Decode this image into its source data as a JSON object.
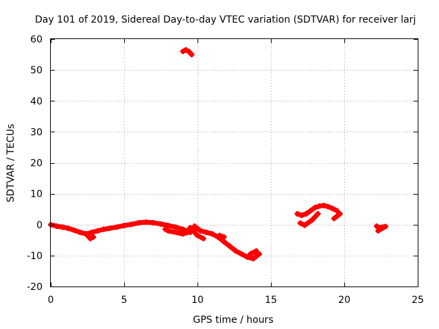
{
  "chart_data": {
    "type": "scatter",
    "title": "Day 101 of 2019, Sidereal Day-to-day VTEC variation (SDTVAR) for receiver larj",
    "xlabel": "GPS time / hours",
    "ylabel": "SDTVAR / TECUs",
    "xlim": [
      0,
      25
    ],
    "ylim": [
      -20,
      60
    ],
    "xticks": [
      0,
      5,
      10,
      15,
      20,
      25
    ],
    "yticks": [
      -20,
      -10,
      0,
      10,
      20,
      30,
      40,
      50,
      60
    ],
    "grid": true,
    "marker_color": "#ff0000",
    "series": [
      {
        "name": "segment-1",
        "x": [
          0.0,
          0.4,
          0.8,
          1.2,
          1.6,
          2.0,
          2.4,
          2.8,
          3.2,
          3.6,
          4.0,
          4.5,
          5.0,
          5.5,
          6.0,
          6.5,
          7.0,
          7.5,
          8.0,
          8.5,
          9.0,
          9.5,
          9.8,
          10.2,
          10.6,
          11.0,
          11.4,
          11.8,
          12.2,
          12.6,
          13.0,
          13.4,
          13.8,
          14.2
        ],
        "y": [
          0,
          -0.5,
          -0.8,
          -1.2,
          -1.8,
          -2.5,
          -3.0,
          -2.5,
          -2.0,
          -1.5,
          -1.2,
          -0.8,
          -0.3,
          0.1,
          0.6,
          0.8,
          0.6,
          0.2,
          -0.3,
          -0.8,
          -1.5,
          -2.5,
          -0.5,
          -2.0,
          -2.5,
          -3.0,
          -4.0,
          -5.5,
          -7.0,
          -8.5,
          -9.5,
          -10.5,
          -11.0,
          -9.5
        ]
      },
      {
        "name": "segment-1-spurs",
        "x": [
          2.5,
          2.7,
          2.9,
          7.8,
          8.0,
          9.0,
          9.3,
          9.5,
          10.0,
          10.4,
          11.5,
          11.8,
          13.6,
          14.0
        ],
        "y": [
          -3.5,
          -4.5,
          -4.0,
          -1.5,
          -2.0,
          -3.0,
          -2.5,
          -1.0,
          -3.5,
          -4.5,
          -3.5,
          -4.0,
          -9.5,
          -8.5
        ]
      },
      {
        "name": "segment-2",
        "x": [
          9.0,
          9.2,
          9.4,
          9.6
        ],
        "y": [
          56.0,
          56.5,
          56.0,
          55.0
        ]
      },
      {
        "name": "segment-3",
        "x": [
          16.8,
          17.1,
          17.4,
          17.7,
          18.0,
          18.3,
          18.6,
          18.9,
          19.2,
          19.5,
          17.0,
          17.3,
          17.8,
          18.2,
          19.3,
          19.7
        ],
        "y": [
          3.5,
          3.0,
          3.5,
          4.5,
          5.5,
          6.0,
          6.2,
          5.8,
          5.2,
          4.5,
          0.5,
          -0.2,
          1.5,
          3.5,
          2.0,
          3.5
        ]
      },
      {
        "name": "segment-4",
        "x": [
          22.2,
          22.4,
          22.6,
          22.8,
          22.3
        ],
        "y": [
          -0.5,
          -1.0,
          -0.8,
          -0.6,
          -2.0
        ]
      }
    ]
  }
}
